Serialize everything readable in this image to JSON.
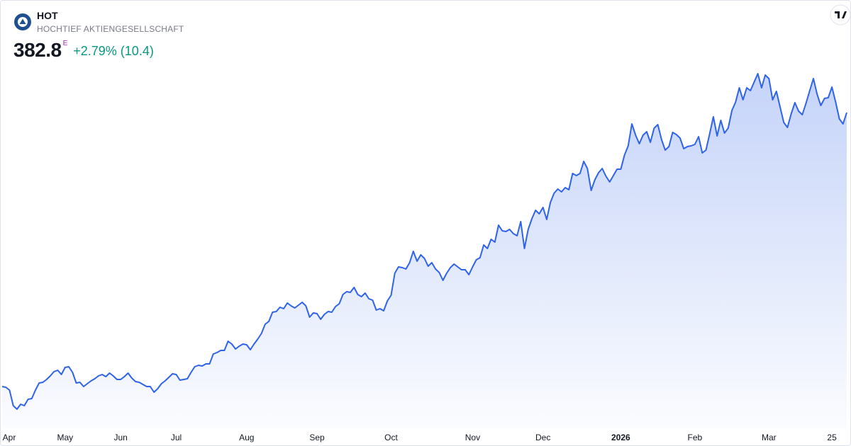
{
  "header": {
    "symbol": "HOT",
    "name": "HOCHTIEF AKTIENGESELLSCHAFT",
    "price": 382.8,
    "badge": "E",
    "change": "+2.79% (10.4)"
  },
  "chart_data": {
    "type": "area",
    "color": "#2f63e8",
    "categories": [
      null,
      "Apr",
      null,
      null,
      null,
      null,
      null,
      null,
      null,
      null,
      null,
      null,
      null,
      null,
      null,
      null,
      null,
      "May",
      null,
      null,
      null,
      null,
      null,
      null,
      null,
      null,
      null,
      null,
      null,
      null,
      null,
      null,
      "Jun",
      null,
      null,
      null,
      null,
      null,
      null,
      null,
      null,
      null,
      null,
      null,
      null,
      null,
      null,
      "Jul",
      null,
      null,
      null,
      null,
      null,
      null,
      null,
      null,
      null,
      null,
      null,
      null,
      null,
      null,
      null,
      null,
      null,
      null,
      "Aug",
      null,
      null,
      null,
      null,
      null,
      null,
      null,
      null,
      null,
      null,
      null,
      null,
      null,
      null,
      null,
      null,
      null,
      null,
      "Sep",
      null,
      null,
      null,
      null,
      null,
      null,
      null,
      null,
      null,
      null,
      null,
      null,
      null,
      null,
      null,
      null,
      null,
      null,
      null,
      "Oct",
      null,
      null,
      null,
      null,
      null,
      null,
      null,
      null,
      null,
      null,
      null,
      null,
      null,
      null,
      null,
      null,
      null,
      null,
      null,
      null,
      null,
      "Nov",
      null,
      null,
      null,
      null,
      null,
      null,
      null,
      null,
      null,
      null,
      null,
      null,
      null,
      null,
      null,
      null,
      null,
      null,
      "Dec",
      null,
      null,
      null,
      null,
      null,
      null,
      null,
      null,
      null,
      null,
      null,
      null,
      null,
      null,
      null,
      null,
      null,
      null,
      null,
      null,
      "2026",
      null,
      null,
      null,
      null,
      null,
      null,
      null,
      null,
      null,
      null,
      null,
      null,
      null,
      null,
      null,
      null,
      null,
      null,
      null,
      "Feb",
      null,
      null,
      null,
      null,
      null,
      null,
      null,
      null,
      null,
      null,
      null,
      null,
      null,
      null,
      null,
      null,
      null,
      null,
      null,
      "Mar",
      null,
      null,
      null,
      null,
      null,
      null,
      null,
      null,
      null,
      null,
      null,
      null,
      null,
      null,
      null,
      null,
      "25",
      null,
      null,
      null,
      null
    ],
    "values": [
      150.6,
      150.0,
      147.6,
      134.4,
      131.4,
      135.6,
      134.4,
      139.8,
      140.4,
      147.6,
      153.6,
      154.2,
      156.6,
      159.6,
      163.2,
      164.4,
      160.8,
      166.8,
      167.4,
      162.6,
      153.6,
      154.2,
      150.6,
      153.0,
      155.4,
      157.2,
      159.6,
      160.8,
      159.0,
      162.0,
      159.6,
      156.6,
      156.6,
      159.0,
      162.0,
      157.8,
      154.8,
      154.2,
      152.4,
      150.6,
      150.6,
      145.8,
      148.8,
      153.0,
      155.4,
      158.4,
      161.4,
      160.8,
      156.0,
      156.6,
      157.2,
      162.6,
      167.4,
      168.6,
      168.0,
      169.8,
      169.8,
      178.2,
      179.4,
      181.2,
      181.2,
      189.0,
      186.6,
      182.4,
      184.8,
      186.6,
      186.0,
      181.8,
      186.6,
      190.8,
      195.6,
      203.4,
      205.8,
      213.6,
      214.2,
      217.8,
      216.6,
      221.4,
      219.0,
      217.2,
      219.6,
      222.0,
      219.0,
      209.4,
      213.0,
      212.4,
      207.6,
      211.8,
      214.2,
      213.6,
      218.4,
      220.8,
      228.6,
      231.0,
      230.4,
      234.6,
      228.6,
      226.8,
      229.8,
      225.0,
      223.8,
      215.4,
      216.6,
      214.8,
      223.2,
      228.0,
      246.6,
      252.0,
      251.4,
      250.2,
      255.6,
      265.2,
      256.8,
      262.2,
      259.2,
      252.6,
      255.6,
      250.2,
      247.2,
      240.6,
      246.6,
      251.4,
      254.4,
      252.0,
      249.6,
      249.6,
      245.4,
      252.0,
      258.0,
      259.8,
      270.6,
      267.6,
      275.4,
      273.0,
      287.4,
      282.6,
      282.0,
      283.8,
      280.2,
      278.4,
      290.4,
      267.6,
      283.8,
      292.8,
      300.0,
      297.0,
      302.4,
      292.2,
      306.6,
      314.4,
      318.0,
      315.6,
      319.2,
      317.4,
      331.2,
      329.4,
      331.2,
      341.4,
      335.4,
      316.8,
      325.8,
      331.8,
      335.4,
      328.8,
      324.0,
      329.4,
      334.8,
      334.8,
      346.8,
      354.6,
      373.2,
      363.6,
      356.4,
      363.6,
      366.6,
      357.6,
      369.6,
      372.6,
      360.0,
      351.0,
      354.0,
      366.0,
      364.2,
      361.2,
      352.2,
      354.0,
      354.6,
      355.8,
      362.4,
      348.6,
      351.0,
      364.8,
      379.2,
      363.0,
      376.2,
      365.4,
      369.6,
      384.6,
      391.8,
      403.8,
      393.6,
      403.8,
      401.4,
      408.6,
      415.8,
      403.8,
      414.6,
      411.6,
      393.6,
      400.8,
      387.6,
      374.4,
      370.2,
      381.6,
      391.2,
      384.0,
      381.0,
      390.6,
      401.4,
      411.6,
      398.4,
      388.8,
      394.8,
      395.4,
      404.4,
      391.8,
      377.4,
      373.2,
      382.8
    ]
  }
}
